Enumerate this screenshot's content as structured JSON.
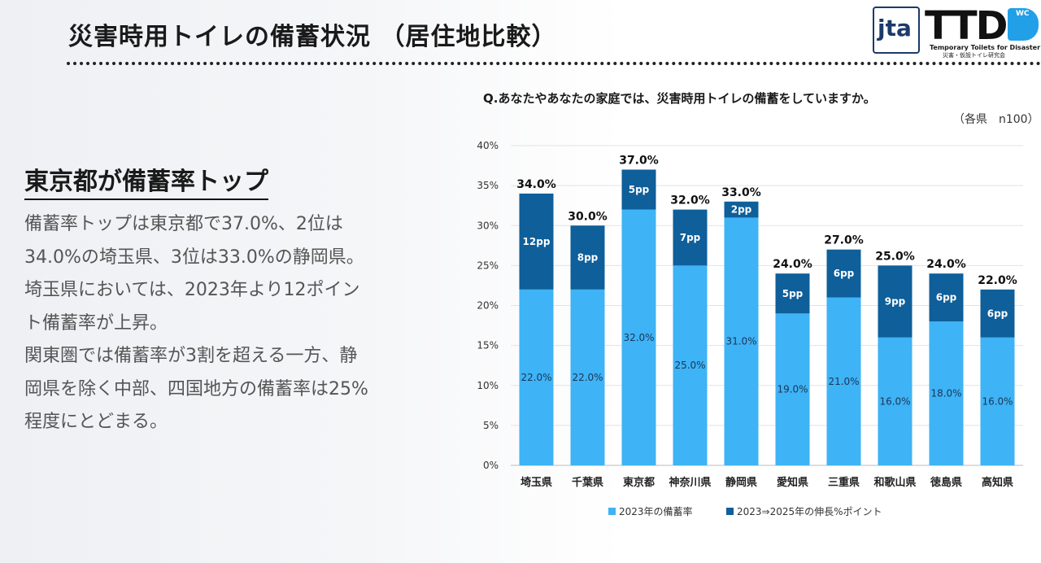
{
  "header": {
    "title": "災害時用トイレの備蓄状況 （居住地比較）",
    "logo_jta": "jta",
    "logo_ttd": "TTD",
    "logo_ttd_mark": "WC",
    "logo_ttd_en": "Temporary Toilets for Disaster",
    "logo_ttd_jp": "災害・仮設トイレ研究会"
  },
  "left": {
    "headline": "東京都が備蓄率トップ",
    "lines": [
      "備蓄率トップは東京都で37.0%、2位は",
      "34.0%の埼玉県、3位は33.0%の静岡県。",
      "埼玉県においては、2023年より12ポイン",
      "ト備蓄率が上昇。",
      "関東圏では備蓄率が3割を超える一方、静",
      "岡県を除く中部、四国地方の備蓄率は25%",
      "程度にとどまる。"
    ]
  },
  "chart_data": {
    "type": "bar",
    "stacked": true,
    "title": "Q.あなたやあなたの家庭では、災害時用トイレの備蓄をしていますか。",
    "note": "（各県　n100）",
    "categories": [
      "埼玉県",
      "千葉県",
      "東京都",
      "神奈川県",
      "静岡県",
      "愛知県",
      "三重県",
      "和歌山県",
      "徳島県",
      "高知県"
    ],
    "series": [
      {
        "name": "2023年の備蓄率",
        "color": "#3eb3f5",
        "values": [
          22,
          22,
          32,
          25,
          31,
          19,
          21,
          16,
          18,
          16
        ],
        "labels": [
          "22.0%",
          "22.0%",
          "32.0%",
          "25.0%",
          "31.0%",
          "19.0%",
          "21.0%",
          "16.0%",
          "18.0%",
          "16.0%"
        ]
      },
      {
        "name": "2023⇒2025年の伸長%ポイント",
        "color": "#0e5f9a",
        "values": [
          12,
          8,
          5,
          7,
          2,
          5,
          6,
          9,
          6,
          6
        ],
        "labels": [
          "12pp",
          "8pp",
          "5pp",
          "7pp",
          "2pp",
          "5pp",
          "6pp",
          "9pp",
          "6pp",
          "6pp"
        ]
      }
    ],
    "totals": [
      "34.0%",
      "30.0%",
      "37.0%",
      "32.0%",
      "33.0%",
      "24.0%",
      "27.0%",
      "25.0%",
      "24.0%",
      "22.0%"
    ],
    "ylim": [
      0,
      40
    ],
    "yticks": [
      "0%",
      "5%",
      "10%",
      "15%",
      "20%",
      "25%",
      "30%",
      "35%",
      "40%"
    ],
    "legend_position": "bottom"
  }
}
